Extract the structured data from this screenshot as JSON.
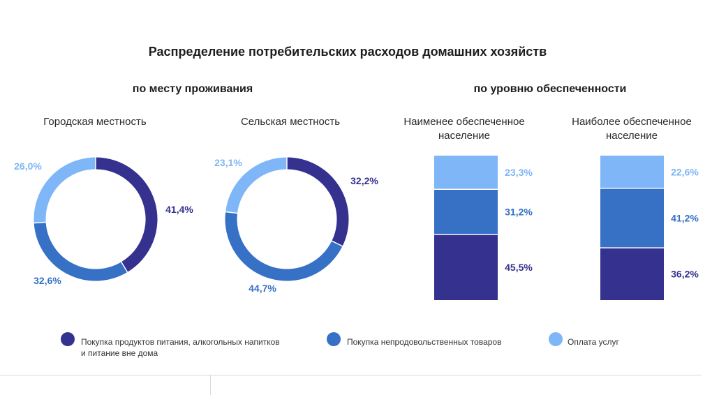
{
  "title": "Распределение потребительских расходов домашних хозяйств",
  "sections": {
    "left": "по месту проживания",
    "right": "по уровню обеспеченности"
  },
  "colors": {
    "food": "#34318f",
    "nonfood": "#3671c6",
    "services": "#7eb6f7"
  },
  "chart_data": [
    {
      "type": "pie",
      "title": "Городская местность",
      "categories": [
        "Покупка продуктов питания, алкогольных напитков и питание вне дома",
        "Покупка непродовольственных товаров",
        "Оплата услуг"
      ],
      "values": [
        41.4,
        32.6,
        26.0
      ],
      "labels": [
        "41,4%",
        "32,6%",
        "26,0%"
      ]
    },
    {
      "type": "pie",
      "title": "Сельская местность",
      "categories": [
        "Покупка продуктов питания, алкогольных напитков и питание вне дома",
        "Покупка непродовольственных товаров",
        "Оплата услуг"
      ],
      "values": [
        32.2,
        44.7,
        23.1
      ],
      "labels": [
        "32,2%",
        "44,7%",
        "23,1%"
      ]
    },
    {
      "type": "bar",
      "title_lines": [
        "Наименее обеспеченное",
        "население"
      ],
      "categories": [
        "Покупка продуктов питания, алкогольных напитков и питание вне дома",
        "Покупка непродовольственных товаров",
        "Оплата услуг"
      ],
      "values": [
        45.5,
        31.2,
        23.3
      ],
      "labels": [
        "45,5%",
        "31,2%",
        "23,3%"
      ]
    },
    {
      "type": "bar",
      "title_lines": [
        "Наиболее обеспеченное",
        "население"
      ],
      "categories": [
        "Покупка продуктов питания, алкогольных напитков и питание вне дома",
        "Покупка непродовольственных товаров",
        "Оплата услуг"
      ],
      "values": [
        36.2,
        41.2,
        22.6
      ],
      "labels": [
        "36,2%",
        "41,2%",
        "22,6%"
      ]
    }
  ],
  "legend": [
    {
      "key": "food",
      "lines": [
        "Покупка продуктов питания, алкогольных напитков",
        "и питание вне дома"
      ]
    },
    {
      "key": "nonfood",
      "lines": [
        "Покупка непродовольственных товаров"
      ]
    },
    {
      "key": "services",
      "lines": [
        "Оплата услуг"
      ]
    }
  ]
}
